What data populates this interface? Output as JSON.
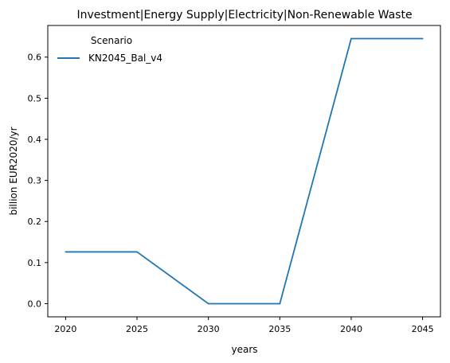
{
  "chart_data": {
    "type": "line",
    "title": "Investment|Energy Supply|Electricity|Non-Renewable Waste",
    "xlabel": "years",
    "ylabel": "billion EUR2020/yr",
    "x": [
      2020,
      2025,
      2030,
      2035,
      2040,
      2045
    ],
    "xlim": [
      2018.75,
      2046.25
    ],
    "ylim": [
      -0.032,
      0.677
    ],
    "xticks": [
      2020,
      2025,
      2030,
      2035,
      2040,
      2045
    ],
    "yticks": [
      0.0,
      0.1,
      0.2,
      0.3,
      0.4,
      0.5,
      0.6
    ],
    "ytick_labels": [
      "0.0",
      "0.1",
      "0.2",
      "0.3",
      "0.4",
      "0.5",
      "0.6"
    ],
    "grid": false,
    "legend": {
      "title": "Scenario",
      "placement": "top-left"
    },
    "series": [
      {
        "name": "KN2045_Bal_v4",
        "color": "#1f77b4",
        "values": [
          0.126,
          0.126,
          0.0,
          0.0,
          0.645,
          0.645
        ]
      }
    ]
  }
}
